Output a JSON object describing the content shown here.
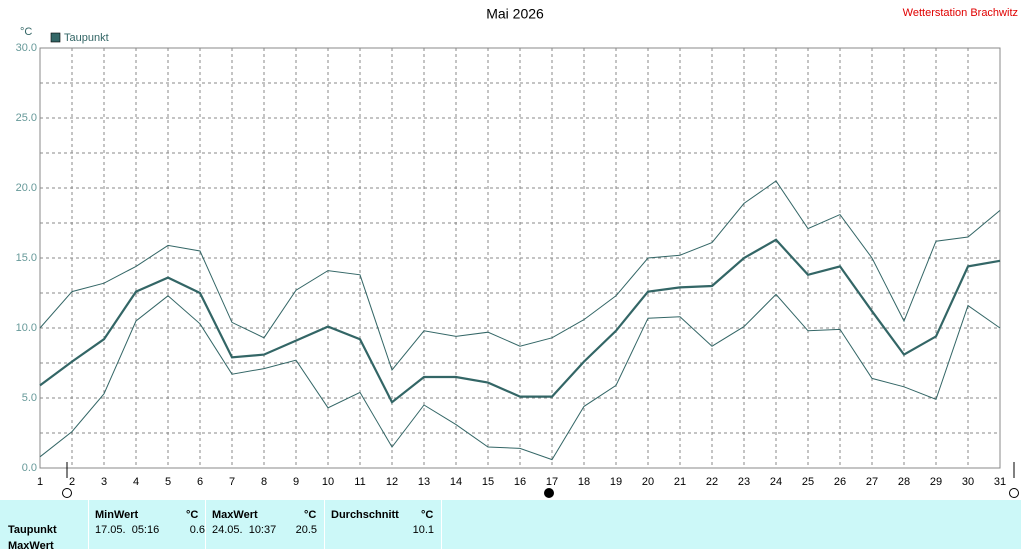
{
  "chart_data": {
    "type": "line",
    "title": "Mai 2026",
    "station": "Wetterstation Brachwitz",
    "y_unit": "°C",
    "x": [
      1,
      2,
      3,
      4,
      5,
      6,
      7,
      8,
      9,
      10,
      11,
      12,
      13,
      14,
      15,
      16,
      17,
      18,
      19,
      20,
      21,
      22,
      23,
      24,
      25,
      26,
      27,
      28,
      29,
      30,
      31
    ],
    "xlim": [
      1,
      31
    ],
    "xticks": [
      1,
      2,
      3,
      4,
      5,
      6,
      7,
      8,
      9,
      10,
      11,
      12,
      13,
      14,
      15,
      16,
      17,
      18,
      19,
      20,
      21,
      22,
      23,
      24,
      25,
      26,
      27,
      28,
      29,
      30,
      31
    ],
    "ylim": [
      0,
      30
    ],
    "yticks": [
      {
        "value": 0,
        "label": "0.0"
      },
      {
        "value": 5,
        "label": "5.0"
      },
      {
        "value": 10,
        "label": "10.0"
      },
      {
        "value": 15,
        "label": "15.0"
      },
      {
        "value": 20,
        "label": "20.0"
      },
      {
        "value": 25,
        "label": "25.0"
      },
      {
        "value": 30,
        "label": "30.0"
      }
    ],
    "y_minor_grid": [
      2.5,
      7.5,
      12.5,
      17.5,
      22.5,
      27.5
    ],
    "grid": true,
    "series": [
      {
        "name": "Taupunkt",
        "color": "#336666",
        "values": [
          5.9,
          7.6,
          9.2,
          12.6,
          13.6,
          12.5,
          7.9,
          8.1,
          9.1,
          10.1,
          9.2,
          4.7,
          6.5,
          6.5,
          6.1,
          5.1,
          5.1,
          7.6,
          9.8,
          12.6,
          12.9,
          13.0,
          15.0,
          16.3,
          13.8,
          14.4,
          11.2,
          8.1,
          9.4,
          14.4,
          14.8
        ]
      },
      {
        "color": "#336666",
        "values": [
          10.0,
          12.6,
          13.2,
          14.4,
          15.9,
          15.5,
          10.4,
          9.3,
          12.7,
          14.1,
          13.8,
          7.0,
          9.8,
          9.4,
          9.7,
          8.7,
          9.3,
          10.6,
          12.3,
          15.0,
          15.2,
          16.1,
          18.9,
          20.5,
          17.1,
          18.1,
          15.0,
          10.5,
          16.2,
          16.5,
          18.4
        ]
      },
      {
        "color": "#336666",
        "values": [
          0.8,
          2.6,
          5.3,
          10.5,
          12.3,
          10.3,
          6.7,
          7.1,
          7.7,
          4.3,
          5.4,
          1.5,
          4.5,
          3.1,
          1.5,
          1.4,
          0.6,
          4.4,
          5.9,
          10.7,
          10.8,
          8.7,
          10.1,
          12.4,
          9.8,
          9.9,
          6.4,
          5.8,
          4.9,
          11.6,
          10.0
        ]
      }
    ]
  },
  "table": {
    "headers": [
      "MinWert",
      "°C",
      "MaxWert",
      "°C",
      "Durchschnitt",
      "°C"
    ],
    "rows": [
      [
        "Taupunkt",
        "17.05.  05:16",
        0.6,
        "24.05.  10:37",
        20.5,
        10.1
      ],
      [
        "MaxWert"
      ]
    ]
  }
}
